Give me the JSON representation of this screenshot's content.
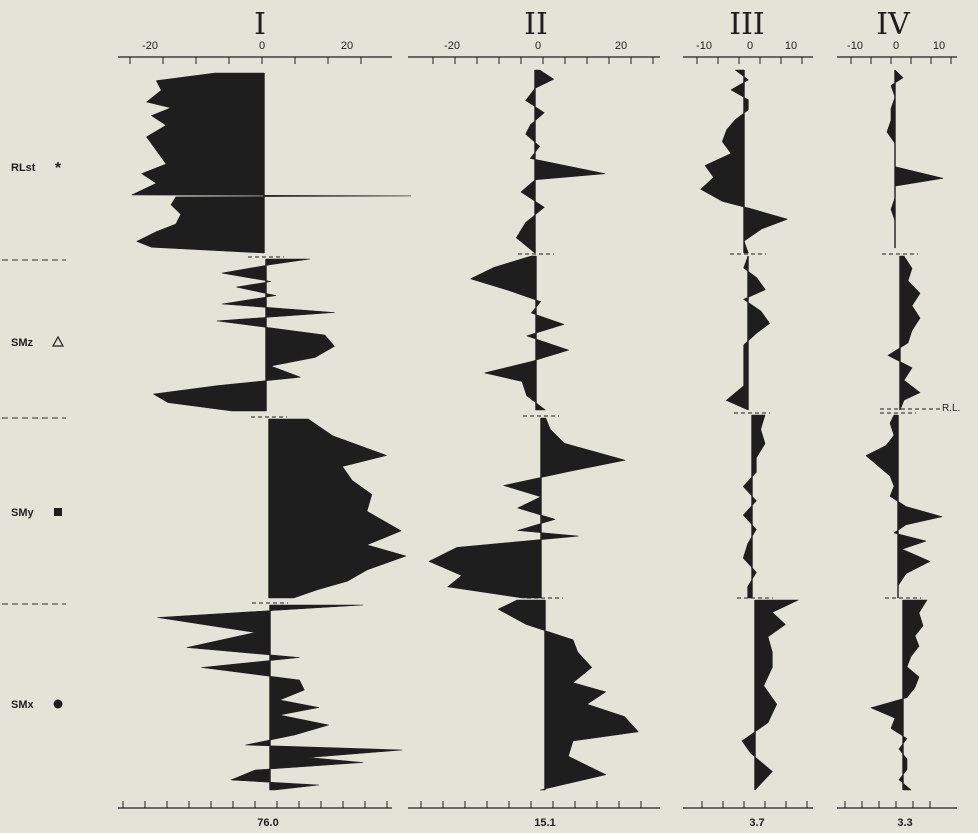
{
  "colors": {
    "background": "#e4e3d8",
    "ink": "#1e1e1e",
    "dash": "#555555"
  },
  "chart_data": {
    "type": "area",
    "description": "four-panel stratigraphic profile chart",
    "row_labels": [
      {
        "label": "RLst",
        "symbol": "asterisk"
      },
      {
        "label": "SMz",
        "symbol": "triangle-open"
      },
      {
        "label": "SMy",
        "symbol": "square-filled"
      },
      {
        "label": "SMx",
        "symbol": "circle-filled"
      }
    ],
    "reference_label": "R.L.",
    "panels": [
      {
        "title": "I",
        "tick_labels": [
          "-20",
          "0",
          "20"
        ],
        "xlim": [
          -28,
          28
        ],
        "ticks_minor": 5,
        "bottom_label": "76.0",
        "segments": [
          [
            [
              -10,
              0
            ],
            [
              -22,
              4
            ],
            [
              -21,
              9
            ],
            [
              -24,
              15
            ],
            [
              -19,
              18
            ],
            [
              -23,
              22
            ],
            [
              -20,
              27
            ],
            [
              -24,
              33
            ],
            [
              -22,
              40
            ],
            [
              -20,
              47
            ],
            [
              -25,
              52
            ],
            [
              -22,
              57
            ],
            [
              -27,
              63
            ],
            [
              30,
              63.5
            ],
            [
              -18,
              64
            ],
            [
              -19,
              68
            ],
            [
              -17,
              73
            ],
            [
              -18,
              78
            ],
            [
              -22,
              82
            ],
            [
              -26,
              87
            ],
            [
              -23,
              90
            ],
            [
              0,
              93
            ]
          ],
          [
            [
              9,
              0
            ],
            [
              1,
              2
            ],
            [
              -9,
              5
            ],
            [
              1,
              8
            ],
            [
              -6,
              10
            ],
            [
              2,
              13
            ],
            [
              -9,
              16
            ],
            [
              14,
              19
            ],
            [
              -10,
              22
            ],
            [
              12,
              27
            ],
            [
              14,
              31
            ],
            [
              10,
              35
            ],
            [
              1,
              38
            ],
            [
              7,
              42
            ],
            [
              -10,
              45
            ],
            [
              -23,
              48
            ],
            [
              -20,
              51
            ],
            [
              -7,
              54
            ]
          ],
          [
            [
              8,
              0
            ],
            [
              13,
              6
            ],
            [
              24,
              13
            ],
            [
              15,
              17
            ],
            [
              17,
              22
            ],
            [
              21,
              27
            ],
            [
              20,
              33
            ],
            [
              27,
              40
            ],
            [
              20,
              45
            ],
            [
              28,
              49
            ],
            [
              20,
              54
            ],
            [
              16,
              58
            ],
            [
              10,
              61
            ],
            [
              5,
              64
            ]
          ],
          [
            [
              19,
              0
            ],
            [
              -23,
              5
            ],
            [
              -3,
              11
            ],
            [
              -17,
              17
            ],
            [
              6,
              21
            ],
            [
              -14,
              25
            ],
            [
              6,
              30
            ],
            [
              7,
              34
            ],
            [
              2,
              38
            ],
            [
              10,
              41
            ],
            [
              2,
              44
            ],
            [
              12,
              48
            ],
            [
              5,
              52
            ],
            [
              -5,
              56
            ],
            [
              27,
              58
            ],
            [
              8,
              61
            ],
            [
              19,
              63
            ],
            [
              -3,
              66
            ],
            [
              -8,
              70
            ],
            [
              10,
              72
            ],
            [
              1,
              74
            ]
          ]
        ]
      },
      {
        "title": "II",
        "tick_labels": [
          "-20",
          "0",
          "20"
        ],
        "xlim": [
          -27,
          27
        ],
        "ticks_minor": 5,
        "bottom_label": "15.1",
        "segments": [
          [
            [
              1,
              0
            ],
            [
              4,
              3
            ],
            [
              0,
              6
            ],
            [
              -2,
              10
            ],
            [
              2,
              14
            ],
            [
              -1,
              18
            ],
            [
              -2,
              21
            ],
            [
              1,
              25
            ],
            [
              -1,
              29
            ],
            [
              15,
              34
            ],
            [
              0,
              36
            ],
            [
              -3,
              40
            ],
            [
              2,
              45
            ],
            [
              -2,
              50
            ],
            [
              -4,
              55
            ],
            [
              0,
              60
            ]
          ],
          [
            [
              -1,
              0
            ],
            [
              -9,
              4
            ],
            [
              -14,
              8
            ],
            [
              -6,
              12
            ],
            [
              1,
              16
            ],
            [
              -1,
              20
            ],
            [
              6,
              24
            ],
            [
              -2,
              28
            ],
            [
              7,
              33
            ],
            [
              -1,
              37
            ],
            [
              -11,
              41
            ],
            [
              -3,
              44
            ],
            [
              -2,
              49
            ],
            [
              2,
              54
            ]
          ],
          [
            [
              1,
              0
            ],
            [
              2,
              4
            ],
            [
              5,
              9
            ],
            [
              18,
              15
            ],
            [
              6,
              19
            ],
            [
              -8,
              24
            ],
            [
              0,
              28
            ],
            [
              -5,
              32
            ],
            [
              3,
              36
            ],
            [
              -5,
              40
            ],
            [
              8,
              42
            ],
            [
              -18,
              46
            ],
            [
              -24,
              51
            ],
            [
              -17,
              56
            ],
            [
              -20,
              60
            ],
            [
              -4,
              64
            ]
          ],
          [
            [
              -6,
              0
            ],
            [
              -10,
              3
            ],
            [
              -4,
              8
            ],
            [
              6,
              13
            ],
            [
              7,
              17
            ],
            [
              10,
              22
            ],
            [
              6,
              27
            ],
            [
              13,
              30
            ],
            [
              9,
              34
            ],
            [
              17,
              38
            ],
            [
              20,
              43
            ],
            [
              6,
              46
            ],
            [
              5,
              51
            ],
            [
              13,
              57
            ],
            [
              -1,
              62
            ]
          ]
        ]
      },
      {
        "title": "III",
        "tick_labels": [
          "-10",
          "0",
          "10"
        ],
        "xlim": [
          -15,
          15
        ],
        "ticks_minor": 5,
        "bottom_label": "3.7",
        "segments": [
          [
            [
              -2,
              0
            ],
            [
              1,
              5
            ],
            [
              -3,
              10
            ],
            [
              1,
              15
            ],
            [
              1,
              20
            ],
            [
              -2,
              25
            ],
            [
              -4,
              30
            ],
            [
              -5,
              36
            ],
            [
              -3,
              42
            ],
            [
              -9,
              48
            ],
            [
              -7,
              54
            ],
            [
              -10,
              60
            ],
            [
              -5,
              66
            ],
            [
              2,
              70
            ],
            [
              10,
              75
            ],
            [
              4,
              80
            ],
            [
              0,
              86
            ],
            [
              1,
              92
            ]
          ],
          [
            [
              0,
              0
            ],
            [
              -1,
              5
            ],
            [
              2,
              9
            ],
            [
              4,
              14
            ],
            [
              -1,
              18
            ],
            [
              3,
              23
            ],
            [
              5,
              28
            ],
            [
              2,
              32
            ],
            [
              -1,
              37
            ],
            [
              -1,
              42
            ],
            [
              -1,
              48
            ],
            [
              -1,
              54
            ],
            [
              -5,
              60
            ],
            [
              0,
              64
            ]
          ],
          [
            [
              3,
              0
            ],
            [
              2,
              5
            ],
            [
              3,
              10
            ],
            [
              1,
              15
            ],
            [
              1,
              20
            ],
            [
              -2,
              25
            ],
            [
              1,
              30
            ],
            [
              -2,
              35
            ],
            [
              1,
              40
            ],
            [
              -1,
              45
            ],
            [
              -2,
              50
            ],
            [
              1,
              55
            ],
            [
              -1,
              60
            ],
            [
              -1,
              64
            ]
          ],
          [
            [
              10,
              0
            ],
            [
              4,
              4
            ],
            [
              7,
              8
            ],
            [
              3,
              12
            ],
            [
              4,
              17
            ],
            [
              4,
              22
            ],
            [
              2,
              28
            ],
            [
              5,
              34
            ],
            [
              3,
              40
            ],
            [
              -3,
              46
            ],
            [
              -1,
              50
            ],
            [
              4,
              56
            ],
            [
              0,
              62
            ]
          ]
        ]
      },
      {
        "title": "IV",
        "tick_labels": [
          "-10",
          "0",
          "10"
        ],
        "xlim": [
          -15,
          15
        ],
        "ticks_minor": 5,
        "bottom_label": "3.3",
        "segments": [
          [
            [
              0,
              0
            ],
            [
              2,
              4
            ],
            [
              -1,
              8
            ],
            [
              0,
              14
            ],
            [
              -1,
              20
            ],
            [
              -1,
              26
            ],
            [
              -2,
              32
            ],
            [
              0,
              38
            ],
            [
              0,
              44
            ],
            [
              0,
              50
            ],
            [
              12,
              56
            ],
            [
              0,
              60
            ],
            [
              0,
              66
            ],
            [
              -1,
              72
            ],
            [
              0,
              78
            ],
            [
              0,
              86
            ],
            [
              0,
              92
            ]
          ],
          [
            [
              1,
              0
            ],
            [
              3,
              5
            ],
            [
              2,
              10
            ],
            [
              5,
              15
            ],
            [
              3,
              20
            ],
            [
              5,
              25
            ],
            [
              3,
              30
            ],
            [
              2,
              35
            ],
            [
              -3,
              40
            ],
            [
              3,
              45
            ],
            [
              1,
              50
            ],
            [
              5,
              55
            ],
            [
              1,
              58
            ],
            [
              0,
              62
            ]
          ],
          [
            [
              -1,
              0
            ],
            [
              -2,
              4
            ],
            [
              -1,
              10
            ],
            [
              -3,
              15
            ],
            [
              -8,
              20
            ],
            [
              -5,
              25
            ],
            [
              -2,
              30
            ],
            [
              -1,
              35
            ],
            [
              -2,
              40
            ],
            [
              2,
              45
            ],
            [
              11,
              50
            ],
            [
              2,
              54
            ],
            [
              -1,
              58
            ],
            [
              7,
              62
            ],
            [
              1,
              66
            ],
            [
              8,
              72
            ],
            [
              2,
              78
            ],
            [
              0,
              84
            ],
            [
              0,
              90
            ]
          ],
          [
            [
              6,
              0
            ],
            [
              4,
              5
            ],
            [
              5,
              10
            ],
            [
              3,
              14
            ],
            [
              4,
              18
            ],
            [
              2,
              22
            ],
            [
              1,
              26
            ],
            [
              4,
              30
            ],
            [
              3,
              34
            ],
            [
              1,
              38
            ],
            [
              -8,
              42
            ],
            [
              -2,
              46
            ],
            [
              -3,
              50
            ],
            [
              1,
              54
            ],
            [
              -1,
              58
            ],
            [
              1,
              62
            ],
            [
              1,
              66
            ],
            [
              -1,
              70
            ],
            [
              2,
              74
            ]
          ]
        ]
      }
    ]
  }
}
